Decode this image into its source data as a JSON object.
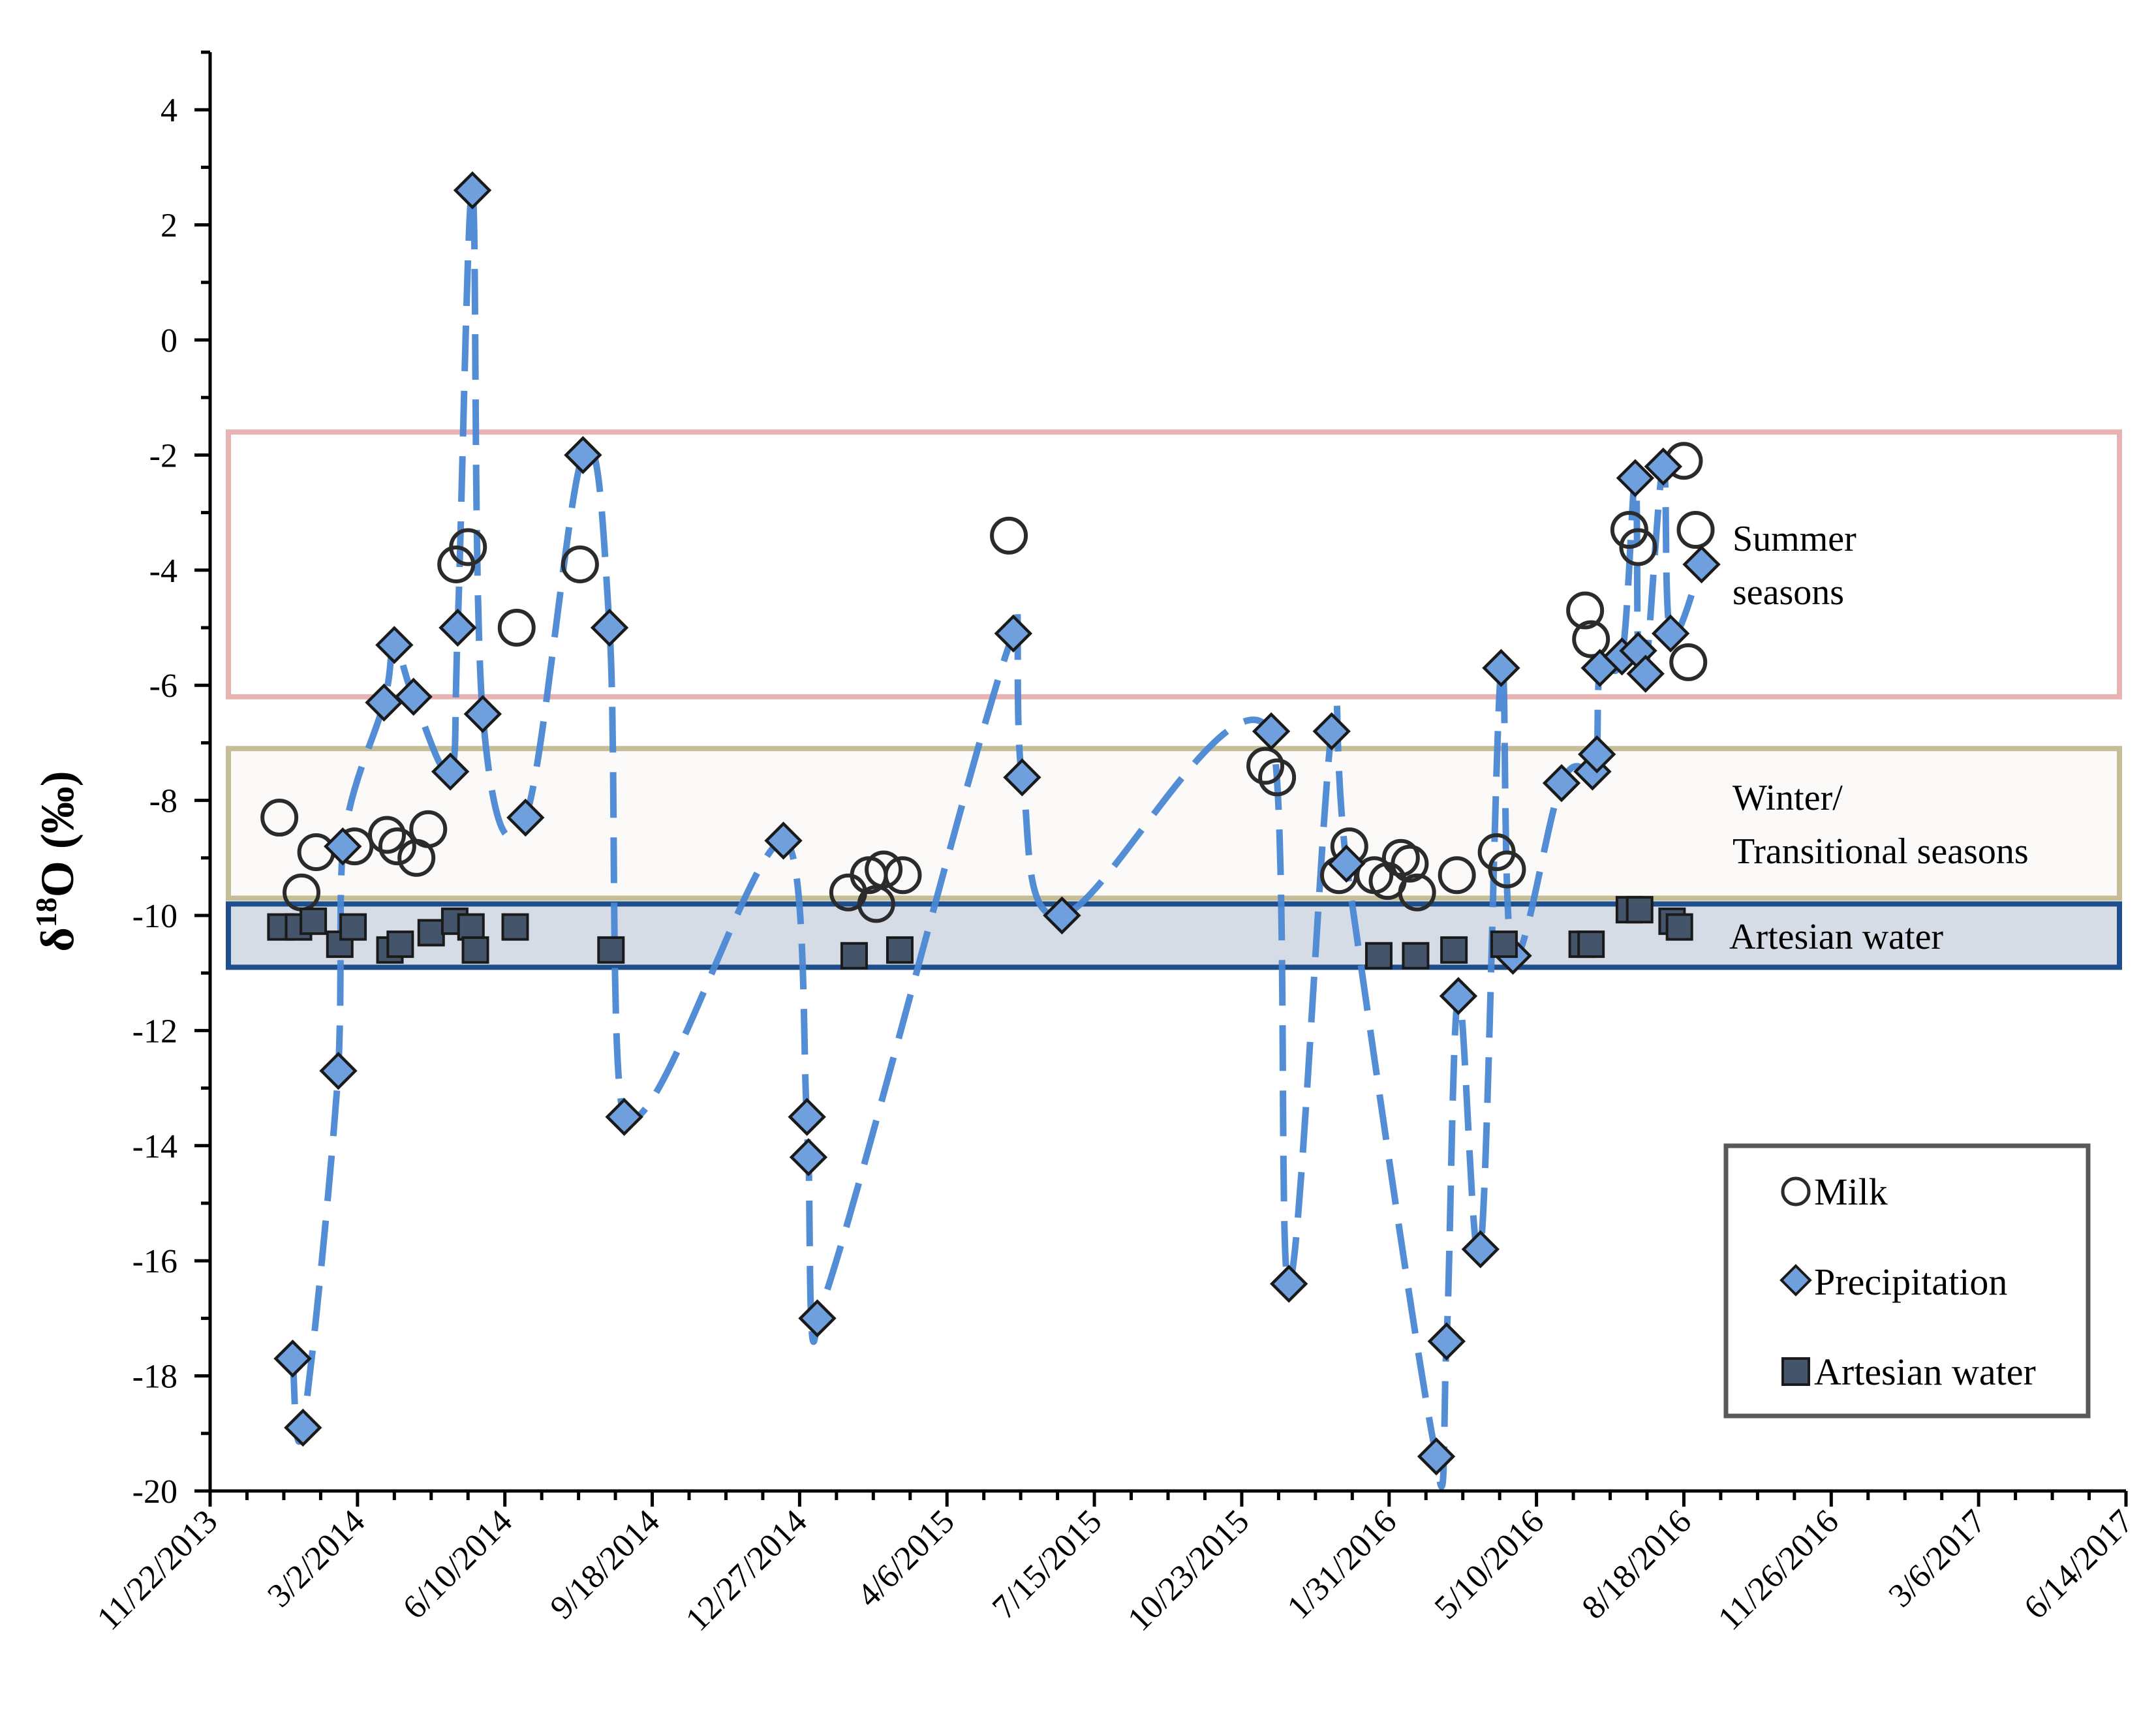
{
  "chart_data": {
    "type": "scatter",
    "title": "",
    "xlabel": "",
    "ylabel": "δ18O (‰)",
    "ylabel_parts": {
      "base": "δ",
      "sup": "18",
      "rest": "O (‰)"
    },
    "ylim": [
      -20,
      5
    ],
    "y_ticks": [
      4,
      2,
      0,
      -2,
      -4,
      -6,
      -8,
      -10,
      -12,
      -14,
      -16,
      -18,
      -20
    ],
    "x_range_days": [
      0,
      1300
    ],
    "x_ticks": [
      {
        "day": 0,
        "label": "11/22/2013"
      },
      {
        "day": 100,
        "label": "3/2/2014"
      },
      {
        "day": 200,
        "label": "6/10/2014"
      },
      {
        "day": 300,
        "label": "9/18/2014"
      },
      {
        "day": 400,
        "label": "12/27/2014"
      },
      {
        "day": 500,
        "label": "4/6/2015"
      },
      {
        "day": 600,
        "label": "7/15/2015"
      },
      {
        "day": 700,
        "label": "10/23/2015"
      },
      {
        "day": 800,
        "label": "1/31/2016"
      },
      {
        "day": 900,
        "label": "5/10/2016"
      },
      {
        "day": 1000,
        "label": "8/18/2016"
      },
      {
        "day": 1100,
        "label": "11/26/2016"
      },
      {
        "day": 1200,
        "label": "3/6/2017"
      },
      {
        "day": 1300,
        "label": "6/14/2017"
      }
    ],
    "bands": [
      {
        "name": "summer",
        "y_range": [
          -6.2,
          -1.6
        ],
        "label_lines": [
          "Summer",
          "seasons"
        ],
        "stroke": "#e7b4b3",
        "fill": "none"
      },
      {
        "name": "winter",
        "y_range": [
          -9.7,
          -7.1
        ],
        "label_lines": [
          "Winter/",
          "Transitional seasons"
        ],
        "stroke": "#c4bd97",
        "fill": "#fbfaf8"
      },
      {
        "name": "artesian",
        "y_range": [
          -10.9,
          -9.8
        ],
        "label_lines": [
          "Artesian water"
        ],
        "stroke": "#1f4e8c",
        "fill": "#d6dce6"
      }
    ],
    "legend_position": "bottom-right",
    "series": [
      {
        "name": "Milk",
        "marker": "circle",
        "color": "#2b2b2b",
        "points": [
          [
            47,
            -8.3
          ],
          [
            62,
            -9.6
          ],
          [
            72,
            -8.9
          ],
          [
            98,
            -8.8
          ],
          [
            120,
            -8.6
          ],
          [
            127,
            -8.8
          ],
          [
            140,
            -9.0
          ],
          [
            148,
            -8.5
          ],
          [
            167,
            -3.9
          ],
          [
            175,
            -3.6
          ],
          [
            208,
            -5.0
          ],
          [
            251,
            -3.9
          ],
          [
            433,
            -9.6
          ],
          [
            447,
            -9.3
          ],
          [
            452,
            -9.8
          ],
          [
            457,
            -9.2
          ],
          [
            470,
            -9.3
          ],
          [
            542,
            -3.4
          ],
          [
            716,
            -7.4
          ],
          [
            724,
            -7.6
          ],
          [
            766,
            -9.3
          ],
          [
            773,
            -8.8
          ],
          [
            790,
            -9.3
          ],
          [
            799,
            -9.4
          ],
          [
            808,
            -9.0
          ],
          [
            814,
            -9.1
          ],
          [
            819,
            -9.6
          ],
          [
            846,
            -9.3
          ],
          [
            873,
            -8.9
          ],
          [
            880,
            -9.2
          ],
          [
            933,
            -4.7
          ],
          [
            937,
            -5.2
          ],
          [
            963,
            -3.3
          ],
          [
            969,
            -3.6
          ],
          [
            1000,
            -2.1
          ],
          [
            1003,
            -5.6
          ],
          [
            1008,
            -3.3
          ]
        ]
      },
      {
        "name": "Precipitation",
        "marker": "diamond",
        "color": "#6f9fdc",
        "line_color": "#4a87d4",
        "points": [
          [
            56,
            -17.7
          ],
          [
            63,
            -18.9
          ],
          [
            87,
            -12.7
          ],
          [
            90,
            -8.8
          ],
          [
            118,
            -6.3
          ],
          [
            125,
            -5.3
          ],
          [
            138,
            -6.2
          ],
          [
            163,
            -7.5
          ],
          [
            168,
            -5.0
          ],
          [
            178,
            2.6
          ],
          [
            185,
            -6.5
          ],
          [
            214,
            -8.3
          ],
          [
            253,
            -2.0
          ],
          [
            271,
            -5.0
          ],
          [
            281,
            -13.5
          ],
          [
            389,
            -8.7
          ],
          [
            405,
            -13.5
          ],
          [
            406,
            -14.2
          ],
          [
            412,
            -17.0
          ],
          [
            545,
            -5.1
          ],
          [
            551,
            -7.6
          ],
          [
            578,
            -10.0
          ],
          [
            720,
            -6.8
          ],
          [
            732,
            -16.4
          ],
          [
            761,
            -6.8
          ],
          [
            771,
            -9.1
          ],
          [
            832,
            -19.4
          ],
          [
            839,
            -17.4
          ],
          [
            847,
            -11.4
          ],
          [
            862,
            -15.8
          ],
          [
            876,
            -5.7
          ],
          [
            884,
            -10.7
          ],
          [
            917,
            -7.7
          ],
          [
            938,
            -7.5
          ],
          [
            941,
            -7.2
          ],
          [
            943,
            -5.7
          ],
          [
            958,
            -5.5
          ],
          [
            967,
            -2.4
          ],
          [
            969,
            -5.4
          ],
          [
            974,
            -5.8
          ],
          [
            986,
            -2.2
          ],
          [
            991,
            -5.1
          ],
          [
            1012,
            -3.9
          ]
        ]
      },
      {
        "name": "Artesian water",
        "marker": "square",
        "color": "#44546a",
        "points": [
          [
            48,
            -10.2
          ],
          [
            60,
            -10.2
          ],
          [
            70,
            -10.1
          ],
          [
            88,
            -10.5
          ],
          [
            97,
            -10.2
          ],
          [
            122,
            -10.6
          ],
          [
            129,
            -10.5
          ],
          [
            150,
            -10.3
          ],
          [
            166,
            -10.1
          ],
          [
            177,
            -10.2
          ],
          [
            180,
            -10.6
          ],
          [
            207,
            -10.2
          ],
          [
            272,
            -10.6
          ],
          [
            437,
            -10.7
          ],
          [
            468,
            -10.6
          ],
          [
            793,
            -10.7
          ],
          [
            818,
            -10.7
          ],
          [
            844,
            -10.6
          ],
          [
            878,
            -10.5
          ],
          [
            931,
            -10.5
          ],
          [
            937,
            -10.5
          ],
          [
            963,
            -9.9
          ],
          [
            970,
            -9.9
          ],
          [
            992,
            -10.1
          ],
          [
            997,
            -10.2
          ]
        ]
      }
    ]
  }
}
